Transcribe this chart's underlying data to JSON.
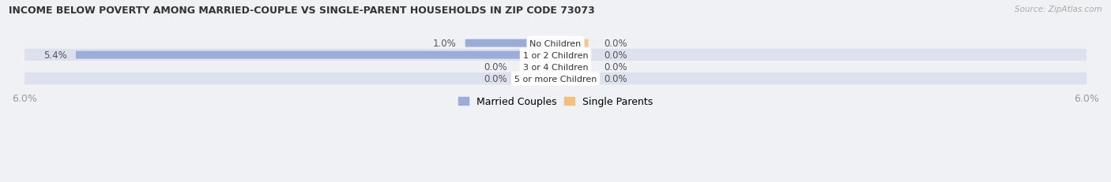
{
  "title": "INCOME BELOW POVERTY AMONG MARRIED-COUPLE VS SINGLE-PARENT HOUSEHOLDS IN ZIP CODE 73073",
  "source": "Source: ZipAtlas.com",
  "categories": [
    "No Children",
    "1 or 2 Children",
    "3 or 4 Children",
    "5 or more Children"
  ],
  "married_values": [
    1.0,
    5.4,
    0.0,
    0.0
  ],
  "single_values": [
    0.0,
    0.0,
    0.0,
    0.0
  ],
  "max_val": 6.0,
  "married_color": "#9bacd6",
  "single_color": "#f0c080",
  "row_bg_colors_light": "#eef0f5",
  "row_bg_colors_dark": "#dde1ee",
  "label_color": "#555555",
  "title_color": "#333333",
  "axis_label_color": "#999999",
  "legend_married": "Married Couples",
  "legend_single": "Single Parents",
  "figsize": [
    14.06,
    2.32
  ],
  "dpi": 100
}
